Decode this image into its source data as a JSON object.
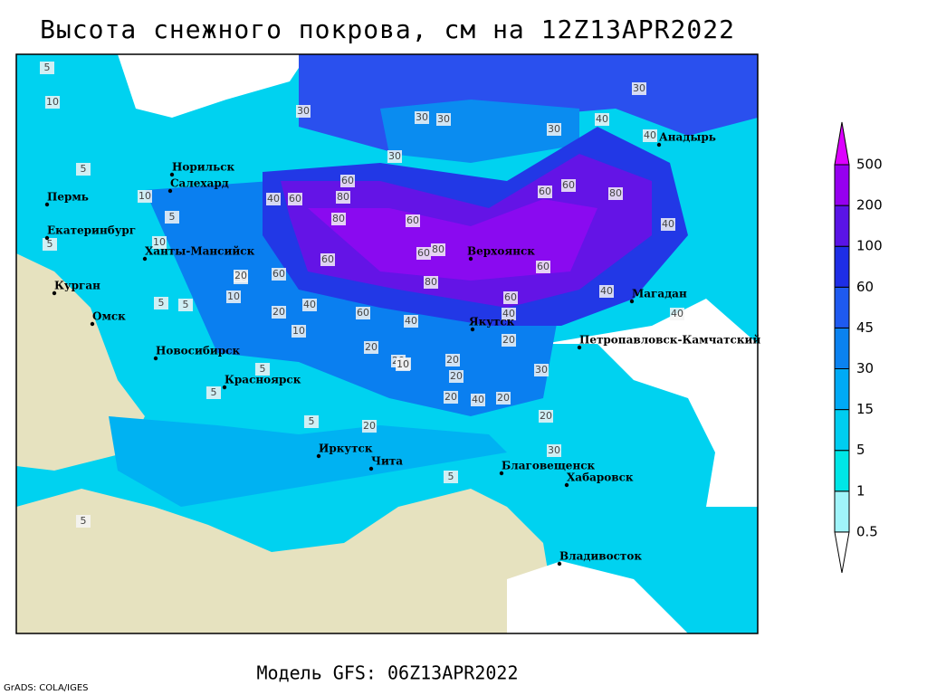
{
  "header": {
    "title": "Высота снежного покрова, см на 12Z13APR2022"
  },
  "footer": {
    "model": "Модель GFS: 06Z13APR2022",
    "credit": "GrADS: COLA/IGES"
  },
  "legend": {
    "levels": [
      0.5,
      1,
      5,
      15,
      30,
      45,
      60,
      100,
      200,
      500
    ],
    "colors": [
      "#ffffff",
      "#a0f4fa",
      "#00e6e6",
      "#00cdf0",
      "#00aaf5",
      "#0a82f0",
      "#1e5af0",
      "#1e2ee6",
      "#5a14e6",
      "#9600f0",
      "#dc00ff"
    ]
  },
  "cities": [
    "Норильск",
    "Салехард",
    "Пермь",
    "Екатеринбург",
    "Ханты-Мансийск",
    "Курган",
    "Омск",
    "Новосибирск",
    "Красноярск",
    "Иркутск",
    "Чита",
    "Верхоянск",
    "Якутск",
    "Магадан",
    "Петропавловск-Камчатский",
    "Анадырь",
    "Благовещенск",
    "Хабаровск",
    "Владивосток"
  ],
  "contour_labels": [
    5,
    10,
    5,
    5,
    10,
    5,
    10,
    20,
    30,
    30,
    30,
    30,
    30,
    40,
    40,
    30,
    10,
    5,
    40,
    60,
    80,
    80,
    60,
    60,
    80,
    60,
    80,
    60,
    60,
    60,
    60,
    80,
    40,
    60,
    20,
    20,
    60,
    40,
    60,
    40,
    40,
    20,
    10,
    20,
    20,
    20,
    10,
    30,
    20,
    40,
    20,
    20,
    30,
    5,
    5,
    5,
    20,
    5,
    5,
    5,
    40,
    40,
    20,
    10
  ]
}
